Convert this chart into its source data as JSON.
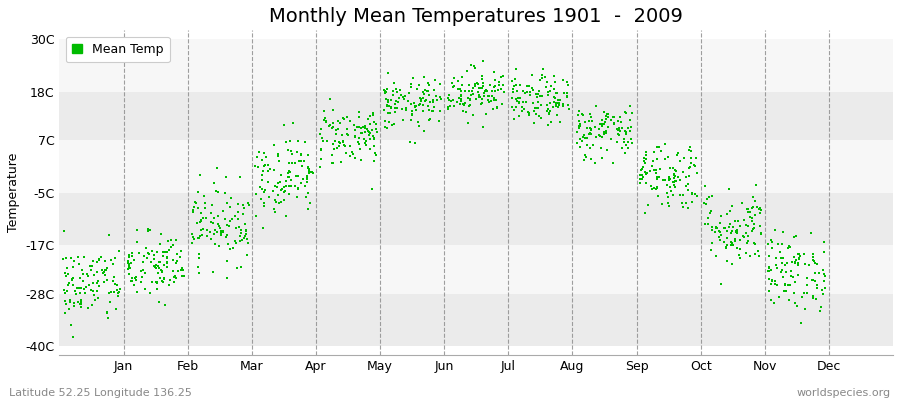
{
  "title": "Monthly Mean Temperatures 1901  -  2009",
  "ylabel": "Temperature",
  "yticks": [
    -40,
    -28,
    -17,
    -5,
    7,
    18,
    30
  ],
  "ytick_labels": [
    "-40C",
    "-28C",
    "-17C",
    "-5C",
    "7C",
    "18C",
    "30C"
  ],
  "ylim": [
    -42,
    32
  ],
  "month_labels": [
    "Jan",
    "Feb",
    "Mar",
    "Apr",
    "May",
    "Jun",
    "Jul",
    "Aug",
    "Sep",
    "Oct",
    "Nov",
    "Dec"
  ],
  "monthly_means": [
    -26,
    -22,
    -12,
    -1,
    8,
    15,
    18,
    16,
    9,
    -1,
    -13,
    -23
  ],
  "monthly_stds": [
    4.5,
    4.0,
    4.5,
    4.5,
    3.5,
    3.0,
    2.8,
    2.8,
    3.2,
    4.0,
    4.5,
    4.5
  ],
  "n_years": 109,
  "marker_color": "#00bb00",
  "marker_size": 4,
  "background_color": "#ffffff",
  "band_colors": [
    "#ebebeb",
    "#f7f7f7"
  ],
  "grid_color": "#888888",
  "legend_label": "Mean Temp",
  "bottom_left_text": "Latitude 52.25 Longitude 136.25",
  "bottom_right_text": "worldspecies.org",
  "title_fontsize": 14,
  "label_fontsize": 9,
  "tick_fontsize": 9,
  "annotation_fontsize": 8,
  "seed": 42
}
